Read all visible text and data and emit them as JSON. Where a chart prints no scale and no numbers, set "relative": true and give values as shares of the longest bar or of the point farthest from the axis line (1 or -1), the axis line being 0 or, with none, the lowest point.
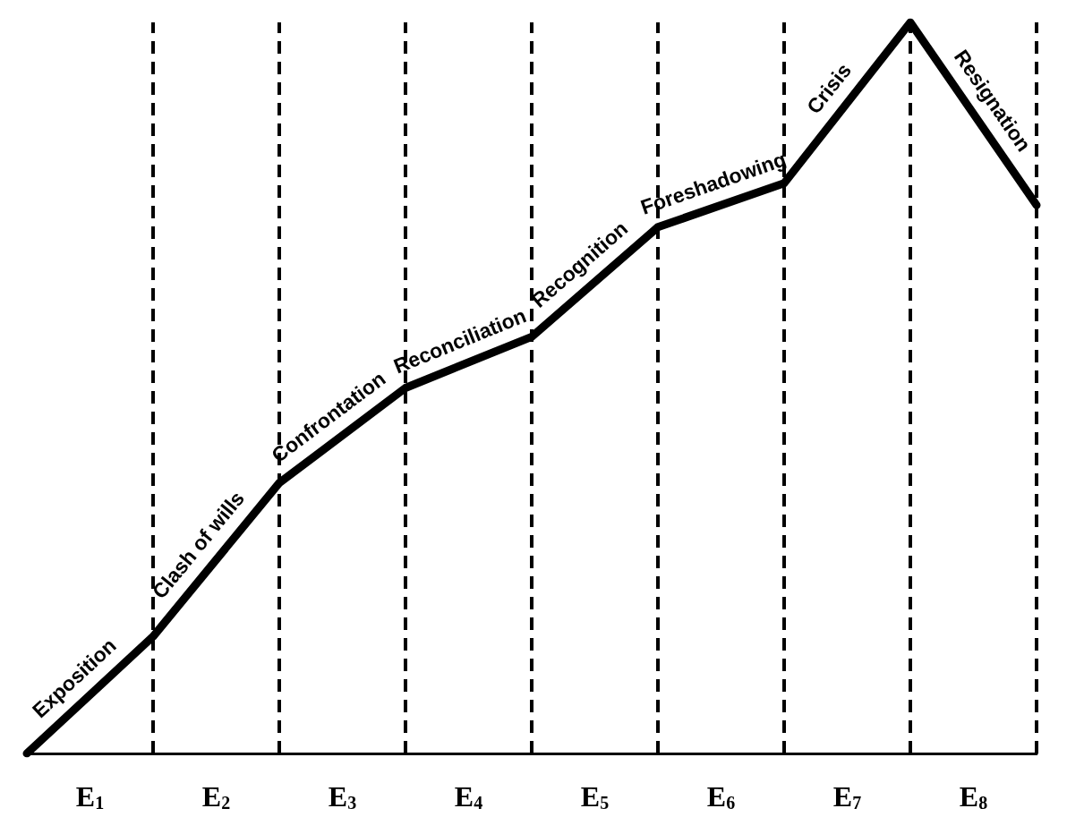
{
  "chart_data": {
    "type": "line",
    "relative": true,
    "categories": [
      null,
      null,
      null,
      null,
      null,
      null,
      null,
      null,
      null
    ],
    "values": [
      0,
      0.16,
      0.37,
      0.5,
      0.57,
      0.72,
      0.78,
      1,
      0.75
    ],
    "grid": "x",
    "color": "#000000",
    "marker": "none",
    "line_style": "solid",
    "annotations": [
      "Exposition",
      "Clash of wills",
      "Confrontation",
      "Reconciliation",
      "Recognition",
      "Foreshadowing",
      "Crisis",
      "Resignation",
      "E$_{1}$",
      "E$_{2}$",
      "E$_{3}$",
      "E$_{4}$",
      "E$_{5}$",
      "E$_{6}$",
      "E$_{7}$",
      "E$_{8}$"
    ]
  }
}
